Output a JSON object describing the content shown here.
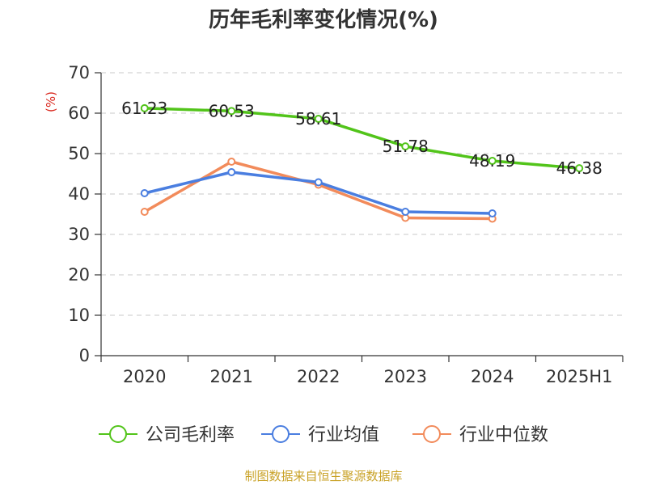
{
  "chart_data": {
    "type": "line",
    "title": "历年毛利率变化情况(%)",
    "unit_label": "(%)",
    "categories": [
      "2020",
      "2021",
      "2022",
      "2023",
      "2024",
      "2025H1"
    ],
    "ylim": [
      0,
      70
    ],
    "yticks": [
      0,
      10,
      20,
      30,
      40,
      50,
      60,
      70
    ],
    "grid": true,
    "legend_position": "bottom",
    "series": [
      {
        "name": "公司毛利率",
        "color": "#52c41a",
        "values": [
          61.23,
          60.53,
          58.61,
          51.78,
          48.19,
          46.38
        ],
        "labels": [
          "61.23",
          "60.53",
          "58.61",
          "51.78",
          "48.19",
          "46.38"
        ]
      },
      {
        "name": "行业均值",
        "color": "#4a7ee0",
        "values": [
          40.2,
          45.4,
          42.9,
          35.6,
          35.2,
          null
        ]
      },
      {
        "name": "行业中位数",
        "color": "#f28b5b",
        "values": [
          35.6,
          48.0,
          42.3,
          34.1,
          33.9,
          null
        ]
      }
    ]
  },
  "footer": {
    "source": "制图数据来自恒生聚源数据库"
  }
}
